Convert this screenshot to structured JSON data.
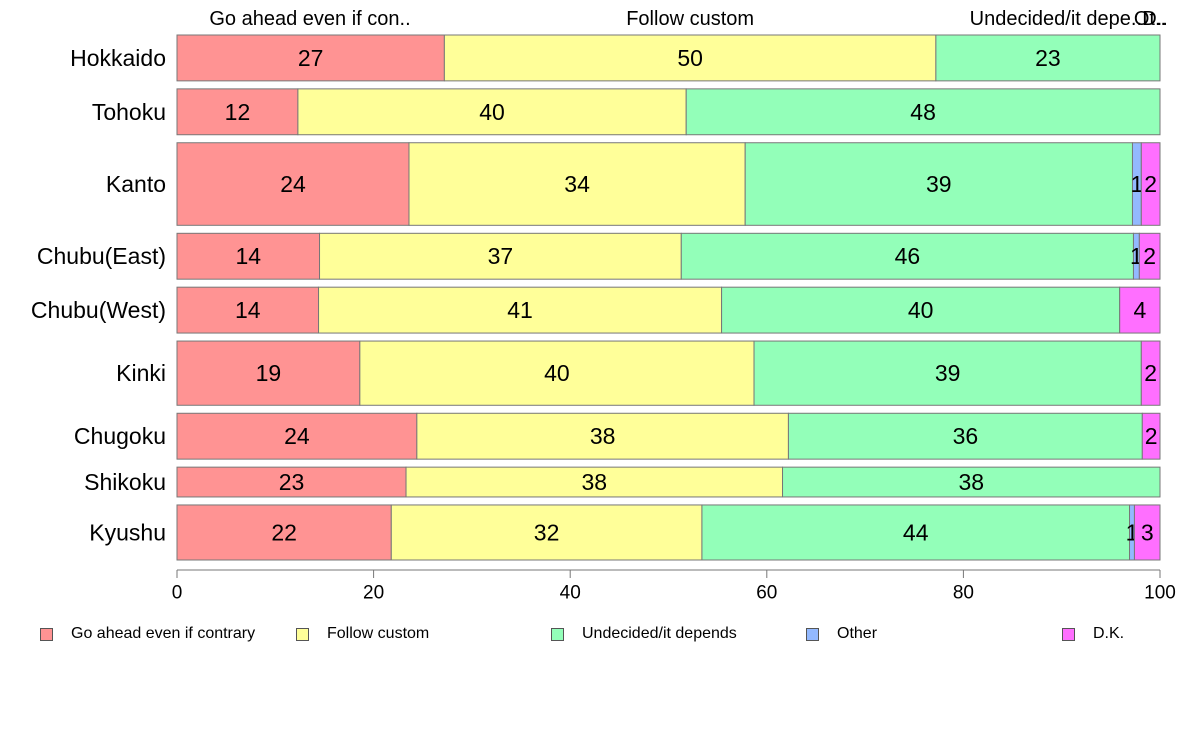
{
  "chart_data": {
    "type": "bar",
    "orientation": "horizontal",
    "stacked": true,
    "categories": [
      "Hokkaido",
      "Tohoku",
      "Kanto",
      "Chubu(East)",
      "Chubu(West)",
      "Kinki",
      "Chugoku",
      "Shikoku",
      "Kyushu"
    ],
    "top_labels": [
      "Go ahead even if con..",
      "Follow custom",
      "Undecided/it depe..",
      "Ot..",
      "D.."
    ],
    "series": [
      {
        "name": "Go ahead even if contrary",
        "color": "#ff9393",
        "values": [
          27.2,
          12.3,
          23.6,
          14.5,
          14.4,
          18.6,
          24.4,
          23.3,
          21.8
        ],
        "labels": [
          "27",
          "12",
          "24",
          "14",
          "14",
          "19",
          "24",
          "23",
          "22"
        ]
      },
      {
        "name": "Follow custom",
        "color": "#ffff99",
        "values": [
          50.0,
          39.5,
          34.2,
          36.8,
          41.0,
          40.1,
          37.8,
          38.3,
          31.6
        ],
        "labels": [
          "50",
          "40",
          "34",
          "37",
          "41",
          "40",
          "38",
          "38",
          "32"
        ]
      },
      {
        "name": "Undecided/it depends",
        "color": "#93ffb9",
        "values": [
          22.8,
          48.2,
          39.4,
          46.0,
          40.5,
          39.4,
          36.0,
          38.4,
          43.5
        ],
        "labels": [
          "23",
          "48",
          "39",
          "46",
          "40",
          "39",
          "36",
          "38",
          "44"
        ]
      },
      {
        "name": "Other",
        "color": "#93b9ff",
        "values": [
          0,
          0,
          0.9,
          0.6,
          0,
          0,
          0,
          0,
          0.5
        ],
        "labels": [
          "",
          "",
          "1",
          "1",
          "",
          "",
          "",
          "",
          "1"
        ]
      },
      {
        "name": "D.K.",
        "color": "#ff6fff",
        "values": [
          0,
          0,
          1.9,
          2.1,
          4.1,
          1.9,
          1.8,
          0,
          2.6
        ],
        "labels": [
          "",
          "",
          "2",
          "2",
          "4",
          "2",
          "2",
          "",
          "3"
        ]
      }
    ],
    "row_weights": [
      1.0,
      1.0,
      1.8,
      1.0,
      1.0,
      1.4,
      1.0,
      0.65,
      1.2
    ],
    "xlim": [
      0,
      100
    ],
    "xticks": [
      "0",
      "20",
      "40",
      "60",
      "80",
      "100"
    ],
    "grid": false,
    "legend_position": "bottom"
  }
}
